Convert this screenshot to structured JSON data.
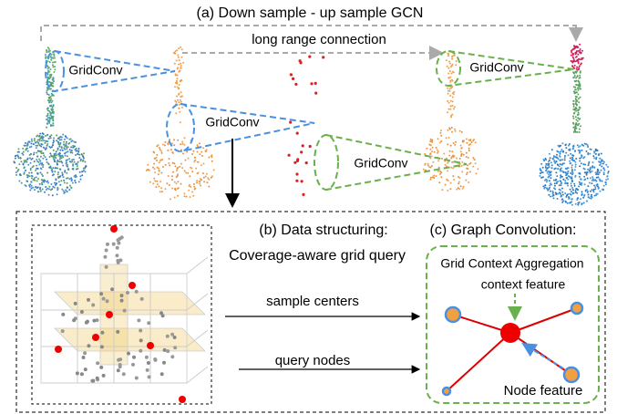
{
  "header": {
    "title": "(a) Down sample - up sample GCN",
    "long_range": "long range connection"
  },
  "gridconv": [
    "GridConv",
    "GridConv",
    "GridConv",
    "GridConv"
  ],
  "panel_b": {
    "title": "(b) Data structuring:",
    "subtitle": "Coverage-aware grid query"
  },
  "arrows": {
    "sample_centers": "sample centers",
    "query_nodes": "query nodes"
  },
  "panel_c": {
    "title": "(c)  Graph Convolution:",
    "aggregation": "Grid Context Aggregation",
    "context": "context feature",
    "node": "Node feature"
  }
}
